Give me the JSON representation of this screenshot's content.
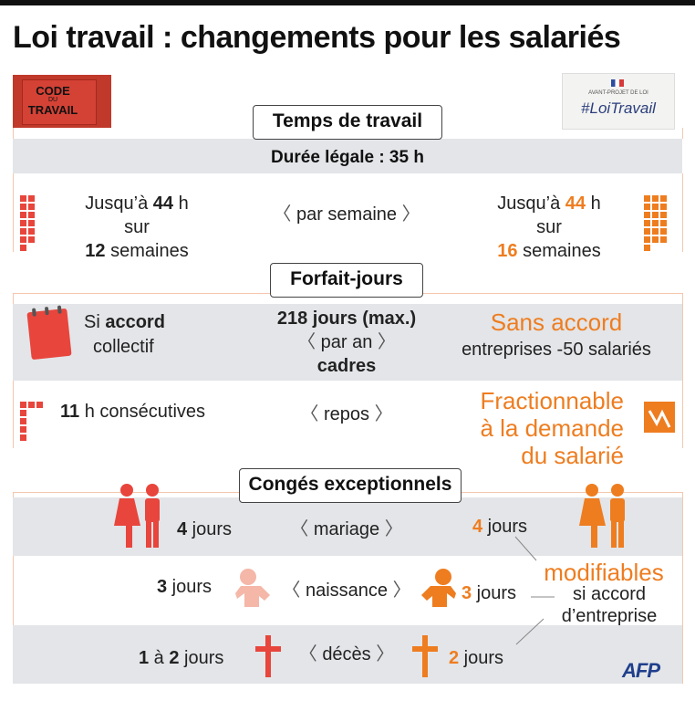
{
  "title": "Loi travail : changements pour les salariés",
  "colors": {
    "accent": "#ee7d20",
    "current": "#e8453c",
    "band": "#e3e5e8"
  },
  "photos": {
    "left": {
      "line1": "CODE",
      "line2": "DU",
      "line3": "TRAVAIL"
    },
    "right": {
      "header": "AVANT-PROJET DE LOI",
      "hashtag": "#LoiTravail"
    }
  },
  "section1": {
    "heading": "Temps de travail",
    "band_label": "Durée légale : 35 h",
    "left": {
      "p1": "Jusqu’à ",
      "n1": "44",
      "u1": " h",
      "mid": "sur",
      "n2": "12",
      "u2": " semaines"
    },
    "center": "par semaine",
    "right": {
      "p1": "Jusqu’à ",
      "n1": "44",
      "u1": " h",
      "mid": "sur",
      "n2": "16",
      "u2": " semaines"
    }
  },
  "section2": {
    "heading": "Forfait-jours",
    "row1": {
      "left_a": "Si ",
      "left_b": "accord",
      "left_c": "collectif",
      "center_top": "218 jours (max.)",
      "center_mid": "par an",
      "center_bottom": "cadres",
      "right_top": "Sans accord",
      "right_bottom": "entreprises -50 salariés"
    },
    "row2": {
      "left_n": "11",
      "left_t": " h consécutives",
      "center": "repos",
      "right_1": "Fractionnable",
      "right_2": "à la demande",
      "right_3": "du salarié"
    }
  },
  "section3": {
    "heading": "Congés exceptionnels",
    "rows": [
      {
        "left_n": "4",
        "left_u": " jours",
        "center": "mariage",
        "right_n": "4",
        "right_u": " jours"
      },
      {
        "left_n": "3",
        "left_u": " jours",
        "center": "naissance",
        "right_n": "3",
        "right_u": " jours"
      },
      {
        "left_n1": "1",
        "left_mid": " à ",
        "left_n2": "2",
        "left_u": " jours",
        "center": "décès",
        "right_n": "2",
        "right_u": " jours"
      }
    ],
    "note": {
      "big": "modifiables",
      "line2": "si accord",
      "line3": "d’entreprise"
    }
  },
  "credit": "AFP"
}
